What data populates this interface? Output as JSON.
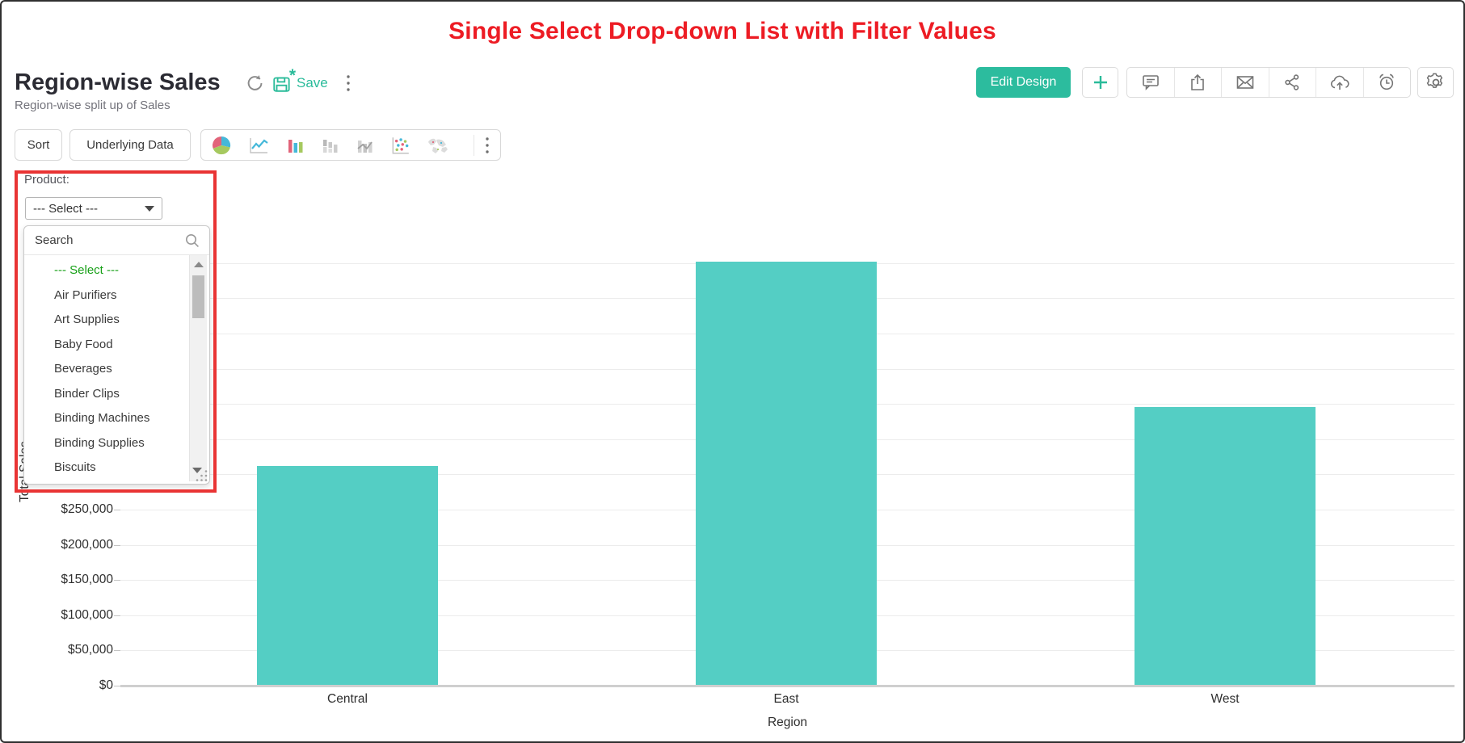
{
  "page": {
    "heading": "Single Select Drop-down List with Filter Values"
  },
  "header": {
    "title": "Region-wise Sales",
    "subtitle": "Region-wise split up of Sales",
    "save_label": "Save",
    "edit_design_label": "Edit Design",
    "add_label": "+",
    "action_icons": [
      "comment-icon",
      "export-icon",
      "email-icon",
      "share-icon",
      "cloud-upload-icon",
      "alert-icon"
    ],
    "settings_icon": "gear-icon"
  },
  "toolbar": {
    "sort_label": "Sort",
    "underlying_data_label": "Underlying Data",
    "chart_type_icons": [
      "pie-chart-icon",
      "line-chart-icon",
      "bar-chart-icon",
      "stacked-bar-icon",
      "combo-chart-icon",
      "scatter-chart-icon",
      "map-chart-icon"
    ]
  },
  "filter": {
    "label": "Product:",
    "selected_value": "--- Select ---",
    "search_placeholder": "Search",
    "options": [
      "--- Select ---",
      "Air Purifiers",
      "Art Supplies",
      "Baby Food",
      "Beverages",
      "Binder Clips",
      "Binding Machines",
      "Binding Supplies",
      "Biscuits"
    ]
  },
  "chart_data": {
    "type": "bar",
    "categories": [
      "Central",
      "East",
      "West"
    ],
    "values": [
      312000,
      602000,
      396000
    ],
    "title": "",
    "xlabel": "Region",
    "ylabel": "Total Sales",
    "ylim": [
      0,
      650000
    ],
    "ytick_step": 50000,
    "ytick_labels_visible": [
      "$250,000",
      "$200,000",
      "$150,000",
      "$100,000",
      "$50,000",
      "$0"
    ],
    "grid": true,
    "legend": "none",
    "bar_color": "#54cec4"
  },
  "colors": {
    "accent_teal": "#2cbc9e",
    "bar_teal": "#54cec4",
    "heading_red": "#ed1c24",
    "highlight_red": "#e93434",
    "option_green": "#18a018"
  }
}
